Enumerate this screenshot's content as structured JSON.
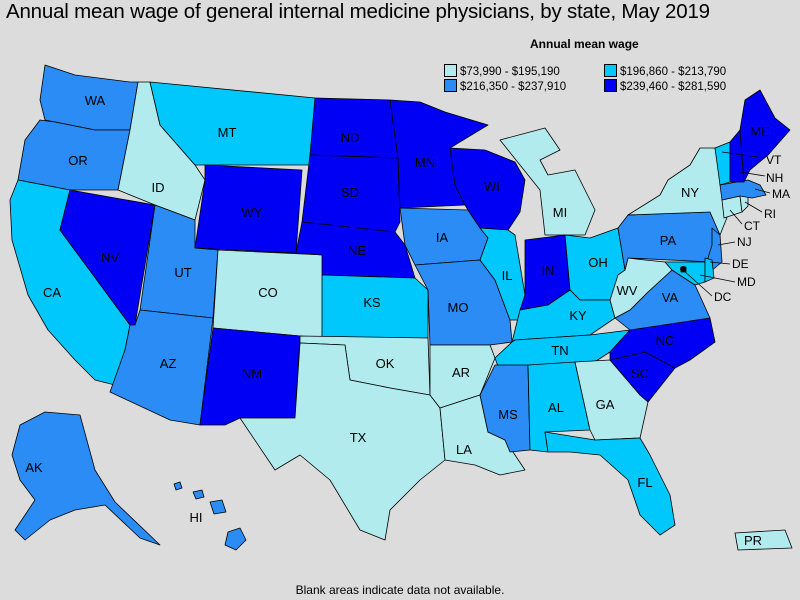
{
  "title": "Annual mean wage of general internal medicine physicians, by state, May 2019",
  "legend": {
    "title": "Annual mean wage",
    "items": [
      {
        "label": "$73,990 - $195,190",
        "color": "#b2ebee"
      },
      {
        "label": "$196,860 - $213,790",
        "color": "#00c8fc"
      },
      {
        "label": "$216,350 - $237,910",
        "color": "#2a8cf4"
      },
      {
        "label": "$239,460 - $281,590",
        "color": "#0000f4"
      }
    ]
  },
  "footnote": "Blank areas indicate data not available.",
  "states": {
    "WA": {
      "label": "WA",
      "tier": 2
    },
    "OR": {
      "label": "OR",
      "tier": 2
    },
    "CA": {
      "label": "CA",
      "tier": 1
    },
    "NV": {
      "label": "NV",
      "tier": 3
    },
    "ID": {
      "label": "ID",
      "tier": 0
    },
    "MT": {
      "label": "MT",
      "tier": 1
    },
    "WY": {
      "label": "WY",
      "tier": 3
    },
    "UT": {
      "label": "UT",
      "tier": 2
    },
    "AZ": {
      "label": "AZ",
      "tier": 2
    },
    "CO": {
      "label": "CO",
      "tier": 0
    },
    "NM": {
      "label": "NM",
      "tier": 3
    },
    "ND": {
      "label": "ND",
      "tier": 3
    },
    "SD": {
      "label": "SD",
      "tier": 3
    },
    "NE": {
      "label": "NE",
      "tier": 3
    },
    "KS": {
      "label": "KS",
      "tier": 1
    },
    "OK": {
      "label": "OK",
      "tier": 0
    },
    "TX": {
      "label": "TX",
      "tier": 0
    },
    "MN": {
      "label": "MN",
      "tier": 3
    },
    "IA": {
      "label": "IA",
      "tier": 2
    },
    "MO": {
      "label": "MO",
      "tier": 2
    },
    "AR": {
      "label": "AR",
      "tier": 0
    },
    "LA": {
      "label": "LA",
      "tier": 0
    },
    "WI": {
      "label": "WI",
      "tier": 3
    },
    "IL": {
      "label": "IL",
      "tier": 1
    },
    "MI": {
      "label": "MI",
      "tier": 0
    },
    "IN": {
      "label": "IN",
      "tier": 3
    },
    "OH": {
      "label": "OH",
      "tier": 1
    },
    "KY": {
      "label": "KY",
      "tier": 1
    },
    "TN": {
      "label": "TN",
      "tier": 1
    },
    "MS": {
      "label": "MS",
      "tier": 2
    },
    "AL": {
      "label": "AL",
      "tier": 1
    },
    "GA": {
      "label": "GA",
      "tier": 0
    },
    "FL": {
      "label": "FL",
      "tier": 1
    },
    "SC": {
      "label": "SC",
      "tier": 3
    },
    "NC": {
      "label": "NC",
      "tier": 3
    },
    "VA": {
      "label": "VA",
      "tier": 2
    },
    "WV": {
      "label": "WV",
      "tier": 0
    },
    "PA": {
      "label": "PA",
      "tier": 2
    },
    "NY": {
      "label": "NY",
      "tier": 0
    },
    "ME": {
      "label": "ME",
      "tier": 3
    },
    "VT": {
      "label": "VT",
      "tier": 1
    },
    "NH": {
      "label": "NH",
      "tier": 3
    },
    "MA": {
      "label": "MA",
      "tier": 2
    },
    "RI": {
      "label": "RI",
      "tier": 0
    },
    "CT": {
      "label": "CT",
      "tier": 0
    },
    "NJ": {
      "label": "NJ",
      "tier": 2
    },
    "DE": {
      "label": "DE",
      "tier": 1
    },
    "MD": {
      "label": "MD",
      "tier": 1
    },
    "DC": {
      "label": "DC",
      "tier": 3
    },
    "AK": {
      "label": "AK",
      "tier": 2
    },
    "HI": {
      "label": "HI",
      "tier": 2
    },
    "PR": {
      "label": "PR",
      "tier": 0
    }
  }
}
